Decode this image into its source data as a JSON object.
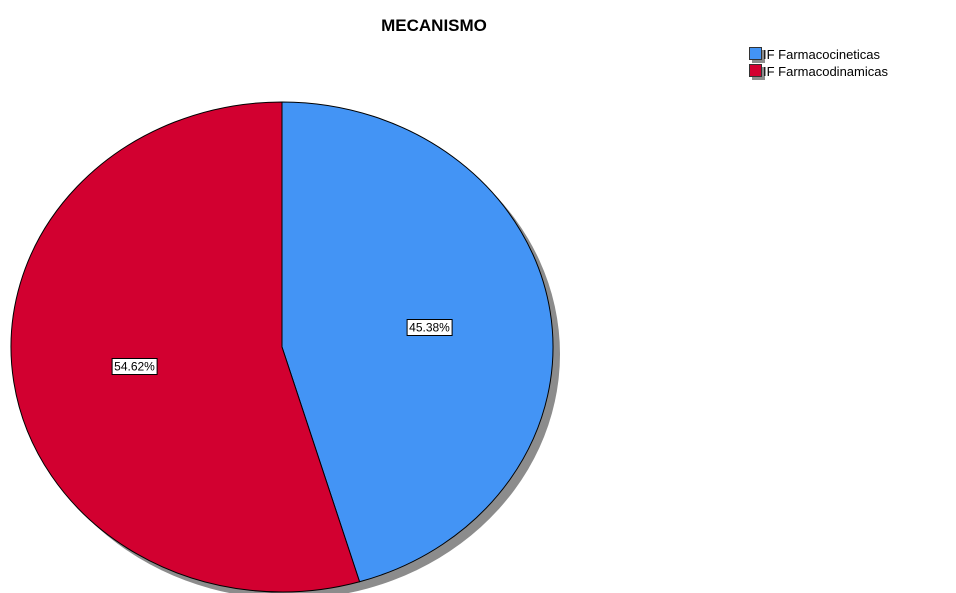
{
  "chart_data": {
    "type": "pie",
    "title": "MECANISMO",
    "categories": [
      "IF Farmacocineticas",
      "IF Farmacodinamicas"
    ],
    "values": [
      45.38,
      54.62
    ],
    "value_labels": [
      "45.38%",
      "54.62%"
    ],
    "colors": [
      "#4394f5",
      "#d20030"
    ],
    "start_angle_deg": 0,
    "direction": "clockwise",
    "legend_position": "top-right"
  }
}
